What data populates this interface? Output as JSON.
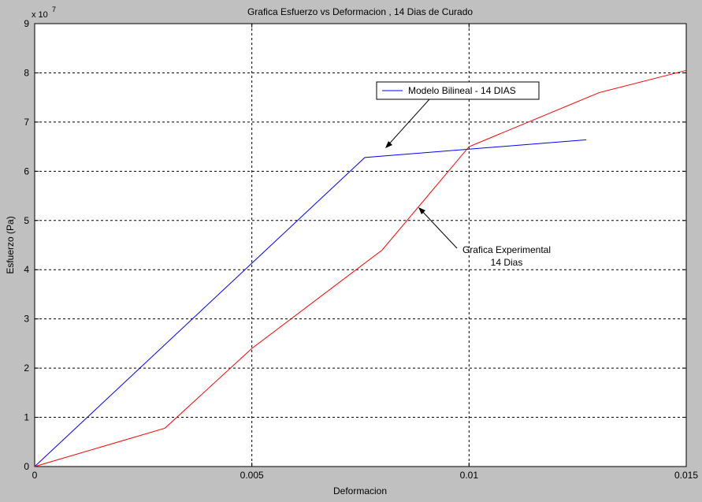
{
  "chart_data": {
    "type": "line",
    "title": "Grafica Esfuerzo vs Deformacion ,  14 Dias de Curado",
    "xlabel": "Deformacion",
    "ylabel": "Esfuerzo (Pa)",
    "exponent_base": "x 10",
    "exponent_power": "7",
    "xlim": [
      0,
      0.015
    ],
    "ylim": [
      0,
      9
    ],
    "y_scale": 10000000,
    "x_ticks": [
      0,
      0.005,
      0.01,
      0.015
    ],
    "x_tick_labels": [
      "0",
      "0.005",
      "0.01",
      "0.015"
    ],
    "y_ticks": [
      0,
      1,
      2,
      3,
      4,
      5,
      6,
      7,
      8,
      9
    ],
    "y_tick_labels": [
      "0",
      "1",
      "2",
      "3",
      "4",
      "5",
      "6",
      "7",
      "8",
      "9"
    ],
    "grid": true,
    "legend_position": "top-center",
    "series": [
      {
        "name": "Modelo Bilineal - 14 DIAS",
        "color": "#0000ff",
        "x": [
          0,
          0.0076,
          0.0127
        ],
        "y": [
          0,
          6.28,
          6.64
        ]
      },
      {
        "color": "#ff0000",
        "x": [
          0,
          0.003,
          0.005,
          0.008,
          0.01,
          0.013,
          0.015
        ],
        "y": [
          0,
          0.78,
          2.4,
          4.4,
          6.5,
          7.6,
          8.05
        ]
      }
    ],
    "annotations": [
      {
        "lines": [
          "Grafica Experimental",
          "14 Dias"
        ]
      }
    ]
  }
}
